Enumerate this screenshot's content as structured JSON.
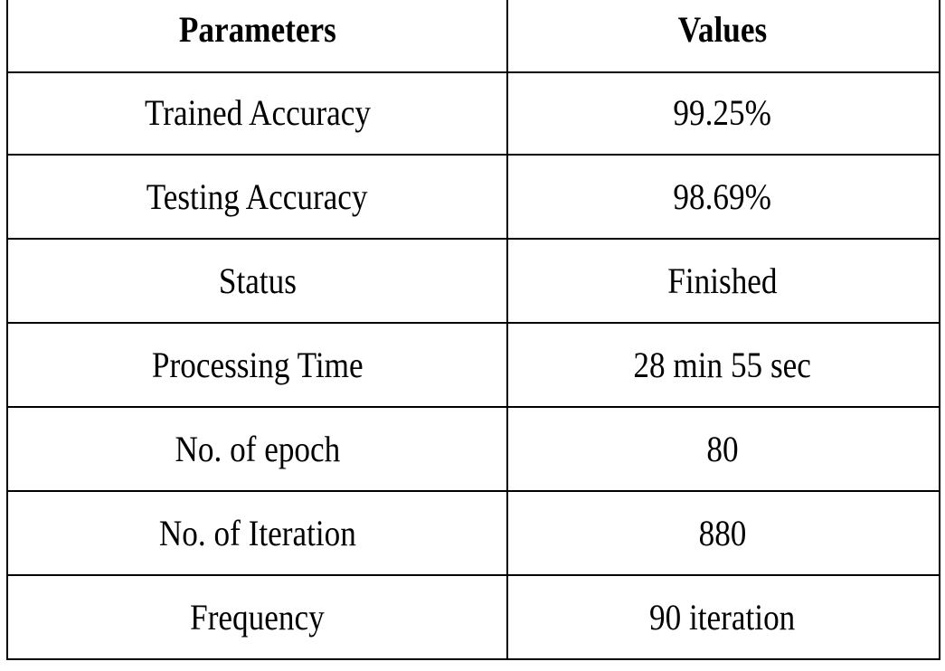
{
  "table": {
    "header": [
      "Parameters",
      "Values"
    ],
    "rows": [
      [
        "Trained Accuracy",
        "99.25%"
      ],
      [
        "Testing Accuracy",
        "98.69%"
      ],
      [
        "Status",
        "Finished"
      ],
      [
        "Processing Time",
        "28 min 55 sec"
      ],
      [
        "No. of epoch",
        "80"
      ],
      [
        "No. of Iteration",
        "880"
      ],
      [
        "Frequency",
        "90 iteration"
      ]
    ]
  }
}
